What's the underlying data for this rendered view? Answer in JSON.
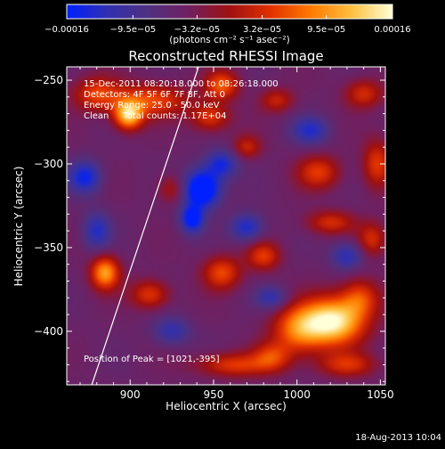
{
  "chart_data": {
    "type": "heatmap",
    "title": "Reconstructed RHESSI Image",
    "xlabel": "Heliocentric X (arcsec)",
    "ylabel": "Heliocentric Y (arcsec)",
    "xlim": [
      862,
      1053
    ],
    "ylim": [
      -432,
      -242
    ],
    "x_ticks": [
      900,
      950,
      1000,
      1050
    ],
    "y_ticks": [
      -250,
      -300,
      -350,
      -400
    ],
    "x_tick_labels": [
      "900",
      "950",
      "1000",
      "1050"
    ],
    "y_tick_labels": [
      "−250",
      "−300",
      "−350",
      "−400"
    ],
    "colorbar": {
      "range": [
        -0.00016,
        0.00016
      ],
      "ticks": [
        -0.00016,
        -9.5e-05,
        -3.2e-05,
        3.2e-05,
        9.5e-05,
        0.00016
      ],
      "tick_labels": [
        "−0.00016",
        "−9.5e−05",
        "−3.2e−05",
        "3.2e−05",
        "9.5e−05",
        "0.00016"
      ],
      "units": "(photons cm⁻² s⁻¹ asec⁻²)",
      "colors": [
        "#0020ff",
        "#3030b0",
        "#503080",
        "#702060",
        "#a01010",
        "#e03000",
        "#ff7a00",
        "#ffc040",
        "#ffffd8"
      ]
    },
    "annotations": [
      "15-Dec-2011 08:20:18.000 to 08:26:18.000",
      "Detectors: 4F 5F 6F 7F 8F, Att 0",
      "Energy Range: 25.0 - 50.0 keV",
      "Clean     Total counts: 1.17E+04"
    ],
    "peak_label": "Position of Peak = [1021,-395]",
    "peak": [
      1021,
      -395
    ],
    "limb_curve": [
      [
        877,
        -432
      ],
      [
        941,
        -242
      ]
    ],
    "sources": [
      {
        "x": 1022,
        "y": -394,
        "sx": 13,
        "sy": 10,
        "a": 1.0
      },
      {
        "x": 1001,
        "y": -399,
        "sx": 11,
        "sy": 10,
        "a": 0.6
      },
      {
        "x": 1038,
        "y": -380,
        "sx": 8,
        "sy": 8,
        "a": 0.45
      },
      {
        "x": 1030,
        "y": -420,
        "sx": 12,
        "sy": 5,
        "a": 0.4
      },
      {
        "x": 962,
        "y": -420,
        "sx": 16,
        "sy": 5,
        "a": 0.45
      },
      {
        "x": 985,
        "y": -415,
        "sx": 8,
        "sy": 6,
        "a": 0.4
      },
      {
        "x": 899,
        "y": -271,
        "sx": 6,
        "sy": 6,
        "a": 0.85
      },
      {
        "x": 912,
        "y": -262,
        "sx": 16,
        "sy": 7,
        "a": 0.5
      },
      {
        "x": 880,
        "y": -258,
        "sx": 10,
        "sy": 7,
        "a": 0.45
      },
      {
        "x": 955,
        "y": -253,
        "sx": 7,
        "sy": 6,
        "a": 0.55
      },
      {
        "x": 948,
        "y": -272,
        "sx": 8,
        "sy": 6,
        "a": 0.45
      },
      {
        "x": 970,
        "y": -290,
        "sx": 6,
        "sy": 5,
        "a": 0.35
      },
      {
        "x": 885,
        "y": -365,
        "sx": 6,
        "sy": 7,
        "a": 0.75
      },
      {
        "x": 912,
        "y": -378,
        "sx": 8,
        "sy": 6,
        "a": 0.45
      },
      {
        "x": 955,
        "y": -365,
        "sx": 8,
        "sy": 7,
        "a": 0.5
      },
      {
        "x": 980,
        "y": -355,
        "sx": 7,
        "sy": 6,
        "a": 0.45
      },
      {
        "x": 1013,
        "y": -305,
        "sx": 9,
        "sy": 7,
        "a": 0.45
      },
      {
        "x": 1020,
        "y": -335,
        "sx": 10,
        "sy": 5,
        "a": 0.4
      },
      {
        "x": 1048,
        "y": -300,
        "sx": 6,
        "sy": 10,
        "a": 0.45
      },
      {
        "x": 1045,
        "y": -345,
        "sx": 6,
        "sy": 7,
        "a": 0.4
      },
      {
        "x": 1040,
        "y": -258,
        "sx": 8,
        "sy": 6,
        "a": 0.4
      },
      {
        "x": 988,
        "y": -262,
        "sx": 7,
        "sy": 5,
        "a": 0.35
      },
      {
        "x": 925,
        "y": -315,
        "sx": 6,
        "sy": 6,
        "a": 0.3
      },
      {
        "x": 930,
        "y": -332,
        "sx": -5,
        "sy": 6,
        "a": 0
      },
      {
        "x": 943,
        "y": -315,
        "sx": 8,
        "sy": 8,
        "a": -0.8
      },
      {
        "x": 937,
        "y": -333,
        "sx": 5,
        "sy": 6,
        "a": -0.6
      },
      {
        "x": 970,
        "y": -338,
        "sx": 7,
        "sy": 6,
        "a": -0.45
      },
      {
        "x": 955,
        "y": -300,
        "sx": 7,
        "sy": 6,
        "a": -0.45
      },
      {
        "x": 873,
        "y": -308,
        "sx": 7,
        "sy": 7,
        "a": -0.5
      },
      {
        "x": 880,
        "y": -340,
        "sx": 6,
        "sy": 8,
        "a": -0.4
      },
      {
        "x": 1008,
        "y": -280,
        "sx": 8,
        "sy": 6,
        "a": -0.4
      },
      {
        "x": 1030,
        "y": -355,
        "sx": 7,
        "sy": 6,
        "a": -0.4
      },
      {
        "x": 925,
        "y": -400,
        "sx": 8,
        "sy": 6,
        "a": -0.35
      },
      {
        "x": 985,
        "y": -380,
        "sx": 7,
        "sy": 5,
        "a": -0.35
      }
    ]
  },
  "footer": {
    "timestamp": "18-Aug-2013 10:04"
  }
}
